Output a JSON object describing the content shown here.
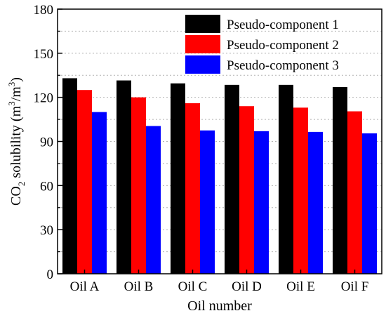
{
  "chart_data": {
    "type": "bar",
    "xlabel": "Oil number",
    "ylabel": {
      "prefix": "CO",
      "prefix_sub": "2",
      "middle": " solubility (m",
      "sup1": "3",
      "slash": "/m",
      "sup2": "3",
      "suffix": ")"
    },
    "categories": [
      "Oil A",
      "Oil B",
      "Oil C",
      "Oil D",
      "Oil E",
      "Oil F"
    ],
    "series": [
      {
        "name": "Pseudo-component 1",
        "color": "#000000",
        "values": [
          133,
          131.5,
          129.5,
          128.5,
          128.5,
          127
        ]
      },
      {
        "name": "Pseudo-component 2",
        "color": "#ff0000",
        "values": [
          125,
          120,
          116,
          114,
          113,
          110.5
        ]
      },
      {
        "name": "Pseudo-component 3",
        "color": "#0000ff",
        "values": [
          110,
          100.5,
          97.5,
          97,
          96.5,
          95.5
        ]
      }
    ],
    "ylim": [
      0,
      180
    ],
    "yticks": [
      "0",
      "30",
      "60",
      "90",
      "120",
      "150",
      "180"
    ],
    "grid": true,
    "legend_position": "top-right"
  }
}
